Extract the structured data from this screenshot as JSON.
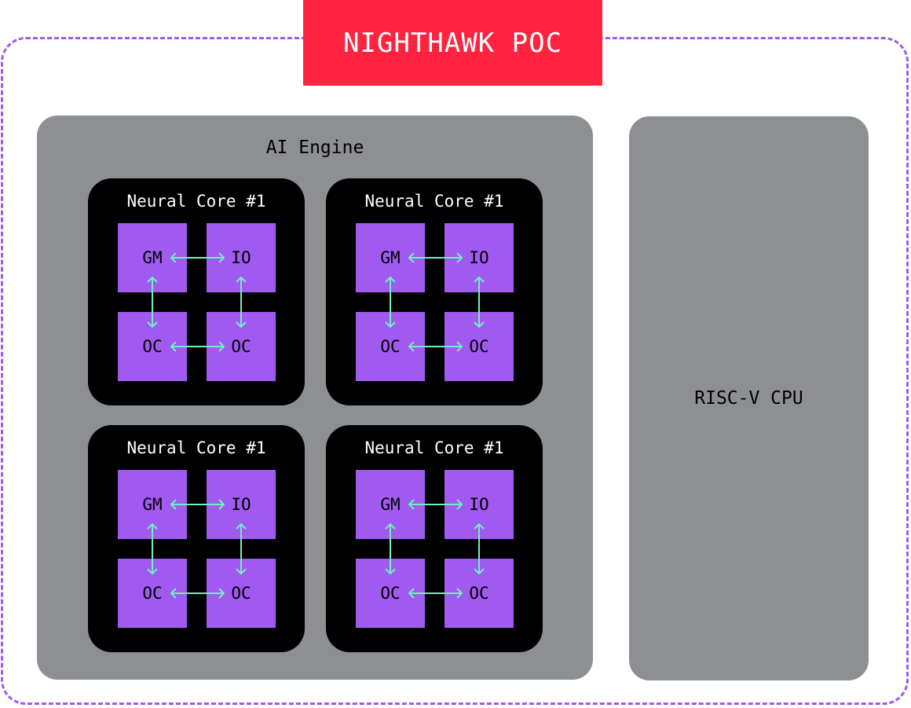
{
  "title": "NIGHTHAWK POC",
  "ai_engine": {
    "label": "AI Engine",
    "cores": [
      {
        "title": "Neural Core #1",
        "blocks": [
          "GM",
          "IO",
          "OC",
          "OC"
        ]
      },
      {
        "title": "Neural Core #1",
        "blocks": [
          "GM",
          "IO",
          "OC",
          "OC"
        ]
      },
      {
        "title": "Neural Core #1",
        "blocks": [
          "GM",
          "IO",
          "OC",
          "OC"
        ]
      },
      {
        "title": "Neural Core #1",
        "blocks": [
          "GM",
          "IO",
          "OC",
          "OC"
        ]
      }
    ]
  },
  "cpu": {
    "label": "RISC-V CPU"
  },
  "colors": {
    "border": "#a05af0",
    "title_bg": "#ff233f",
    "panel": "#8e8f93",
    "block": "#a05af0",
    "arrow": "#6ff0c0"
  }
}
